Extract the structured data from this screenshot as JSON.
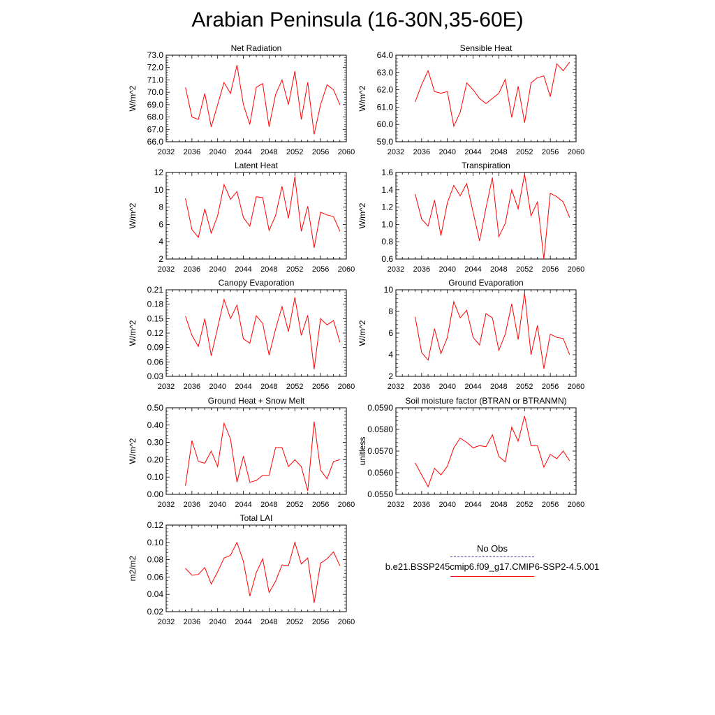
{
  "title": "Arabian Peninsula (16-30N,35-60E)",
  "legend": {
    "obs_label": "No Obs",
    "obs_color": "#4040a0",
    "model_label": "b.e21.BSSP245cmip6.f09_g17.CMIP6-SSP2-4.5.001",
    "model_color": "#ff0000"
  },
  "chart_data": [
    {
      "type": "line",
      "title": "Net Radiation",
      "ylabel": "W/m^2",
      "xlim": [
        2032,
        2060
      ],
      "ylim": [
        66,
        73
      ],
      "xticks": [
        "2032",
        "2036",
        "2040",
        "2044",
        "2048",
        "2052",
        "2056",
        "2060"
      ],
      "yticks": [
        "66.0",
        "67.0",
        "68.0",
        "69.0",
        "70.0",
        "71.0",
        "72.0",
        "73.0"
      ],
      "x": [
        2035,
        2036,
        2037,
        2038,
        2039,
        2040,
        2041,
        2042,
        2043,
        2044,
        2045,
        2046,
        2047,
        2048,
        2049,
        2050,
        2051,
        2052,
        2053,
        2054,
        2055,
        2056,
        2057,
        2058,
        2059
      ],
      "values": [
        70.4,
        68.0,
        67.8,
        69.9,
        67.2,
        69.0,
        70.8,
        69.9,
        72.2,
        69.0,
        67.4,
        70.4,
        70.7,
        67.2,
        69.8,
        71.0,
        69.0,
        71.7,
        67.8,
        70.8,
        66.6,
        69.0,
        70.6,
        70.2,
        69.0
      ]
    },
    {
      "type": "line",
      "title": "Sensible Heat",
      "ylabel": "W/m^2",
      "xlim": [
        2032,
        2060
      ],
      "ylim": [
        59,
        64
      ],
      "xticks": [
        "2032",
        "2036",
        "2040",
        "2044",
        "2048",
        "2052",
        "2056",
        "2060"
      ],
      "yticks": [
        "59.0",
        "60.0",
        "61.0",
        "62.0",
        "63.0",
        "64.0"
      ],
      "x": [
        2035,
        2036,
        2037,
        2038,
        2039,
        2040,
        2041,
        2042,
        2043,
        2044,
        2045,
        2046,
        2047,
        2048,
        2049,
        2050,
        2051,
        2052,
        2053,
        2054,
        2055,
        2056,
        2057,
        2058,
        2059
      ],
      "values": [
        61.3,
        62.3,
        63.1,
        61.9,
        61.8,
        61.9,
        59.9,
        60.7,
        62.4,
        62.0,
        61.5,
        61.2,
        61.5,
        61.8,
        62.6,
        60.4,
        62.2,
        60.1,
        62.4,
        62.7,
        62.8,
        61.6,
        63.5,
        63.1,
        63.6
      ]
    },
    {
      "type": "line",
      "title": "Latent Heat",
      "ylabel": "W/m^2",
      "xlim": [
        2032,
        2060
      ],
      "ylim": [
        2,
        12
      ],
      "xticks": [
        "2032",
        "2036",
        "2040",
        "2044",
        "2048",
        "2052",
        "2056",
        "2060"
      ],
      "yticks": [
        "2",
        "4",
        "6",
        "8",
        "10",
        "12"
      ],
      "x": [
        2035,
        2036,
        2037,
        2038,
        2039,
        2040,
        2041,
        2042,
        2043,
        2044,
        2045,
        2046,
        2047,
        2048,
        2049,
        2050,
        2051,
        2052,
        2053,
        2054,
        2055,
        2056,
        2057,
        2058,
        2059
      ],
      "values": [
        9.0,
        5.4,
        4.5,
        7.8,
        5.0,
        7.0,
        10.6,
        8.9,
        9.8,
        6.8,
        5.8,
        9.2,
        9.1,
        5.3,
        7.0,
        10.4,
        6.7,
        11.5,
        5.2,
        8.1,
        3.3,
        7.4,
        7.1,
        6.9,
        5.2
      ]
    },
    {
      "type": "line",
      "title": "Transpiration",
      "ylabel": "W/m^2",
      "xlim": [
        2032,
        2060
      ],
      "ylim": [
        0.6,
        1.6
      ],
      "xticks": [
        "2032",
        "2036",
        "2040",
        "2044",
        "2048",
        "2052",
        "2056",
        "2060"
      ],
      "yticks": [
        "0.6",
        "0.8",
        "1.0",
        "1.2",
        "1.4",
        "1.6"
      ],
      "x": [
        2035,
        2036,
        2037,
        2038,
        2039,
        2040,
        2041,
        2042,
        2043,
        2044,
        2045,
        2046,
        2047,
        2048,
        2049,
        2050,
        2051,
        2052,
        2053,
        2054,
        2055,
        2056,
        2057,
        2058,
        2059
      ],
      "values": [
        1.35,
        1.06,
        0.98,
        1.28,
        0.87,
        1.25,
        1.45,
        1.33,
        1.47,
        1.14,
        0.81,
        1.19,
        1.54,
        0.86,
        1.01,
        1.4,
        1.18,
        1.58,
        1.1,
        1.26,
        0.6,
        1.36,
        1.32,
        1.26,
        1.08
      ]
    },
    {
      "type": "line",
      "title": "Canopy Evaporation",
      "ylabel": "W/m^2",
      "xlim": [
        2032,
        2060
      ],
      "ylim": [
        0.03,
        0.21
      ],
      "xticks": [
        "2032",
        "2036",
        "2040",
        "2044",
        "2048",
        "2052",
        "2056",
        "2060"
      ],
      "yticks": [
        "0.03",
        "0.06",
        "0.09",
        "0.12",
        "0.15",
        "0.18",
        "0.21"
      ],
      "x": [
        2035,
        2036,
        2037,
        2038,
        2039,
        2040,
        2041,
        2042,
        2043,
        2044,
        2045,
        2046,
        2047,
        2048,
        2049,
        2050,
        2051,
        2052,
        2053,
        2054,
        2055,
        2056,
        2057,
        2058,
        2059
      ],
      "values": [
        0.155,
        0.115,
        0.092,
        0.15,
        0.073,
        0.131,
        0.19,
        0.15,
        0.178,
        0.108,
        0.099,
        0.156,
        0.14,
        0.074,
        0.128,
        0.175,
        0.123,
        0.194,
        0.115,
        0.157,
        0.045,
        0.15,
        0.137,
        0.146,
        0.101
      ]
    },
    {
      "type": "line",
      "title": "Ground Evaporation",
      "ylabel": "W/m^2",
      "xlim": [
        2032,
        2060
      ],
      "ylim": [
        2,
        10
      ],
      "xticks": [
        "2032",
        "2036",
        "2040",
        "2044",
        "2048",
        "2052",
        "2056",
        "2060"
      ],
      "yticks": [
        "2",
        "4",
        "6",
        "8",
        "10"
      ],
      "x": [
        2035,
        2036,
        2037,
        2038,
        2039,
        2040,
        2041,
        2042,
        2043,
        2044,
        2045,
        2046,
        2047,
        2048,
        2049,
        2050,
        2051,
        2052,
        2053,
        2054,
        2055,
        2056,
        2057,
        2058,
        2059
      ],
      "values": [
        7.5,
        4.2,
        3.5,
        6.4,
        4.1,
        5.6,
        8.9,
        7.4,
        8.1,
        5.6,
        4.9,
        7.8,
        7.4,
        4.4,
        5.9,
        8.7,
        5.4,
        9.7,
        4.0,
        6.7,
        2.7,
        5.9,
        5.6,
        5.5,
        4.0
      ]
    },
    {
      "type": "line",
      "title": "Ground Heat + Snow Melt",
      "ylabel": "W/m^2",
      "xlim": [
        2032,
        2060
      ],
      "ylim": [
        0.0,
        0.5
      ],
      "xticks": [
        "2032",
        "2036",
        "2040",
        "2044",
        "2048",
        "2052",
        "2056",
        "2060"
      ],
      "yticks": [
        "0.00",
        "0.10",
        "0.20",
        "0.30",
        "0.40",
        "0.50"
      ],
      "x": [
        2035,
        2036,
        2037,
        2038,
        2039,
        2040,
        2041,
        2042,
        2043,
        2044,
        2045,
        2046,
        2047,
        2048,
        2049,
        2050,
        2051,
        2052,
        2053,
        2054,
        2055,
        2056,
        2057,
        2058,
        2059
      ],
      "values": [
        0.05,
        0.31,
        0.19,
        0.18,
        0.25,
        0.16,
        0.41,
        0.32,
        0.07,
        0.22,
        0.07,
        0.08,
        0.11,
        0.11,
        0.27,
        0.27,
        0.16,
        0.2,
        0.16,
        0.02,
        0.42,
        0.14,
        0.09,
        0.19,
        0.2
      ]
    },
    {
      "type": "line",
      "title": "Soil moisture factor (BTRAN or BTRANMN)",
      "ylabel": "unitless",
      "xlim": [
        2032,
        2060
      ],
      "ylim": [
        0.055,
        0.059
      ],
      "xticks": [
        "2032",
        "2036",
        "2040",
        "2044",
        "2048",
        "2052",
        "2056",
        "2060"
      ],
      "yticks": [
        "0.0550",
        "0.0560",
        "0.0570",
        "0.0580",
        "0.0590"
      ],
      "x": [
        2035,
        2036,
        2037,
        2038,
        2039,
        2040,
        2041,
        2042,
        2043,
        2044,
        2045,
        2046,
        2047,
        2048,
        2049,
        2050,
        2051,
        2052,
        2053,
        2054,
        2055,
        2056,
        2057,
        2058,
        2059
      ],
      "values": [
        0.05645,
        0.0559,
        0.05535,
        0.0562,
        0.0559,
        0.0563,
        0.05715,
        0.0576,
        0.0574,
        0.05715,
        0.05725,
        0.0572,
        0.05775,
        0.05675,
        0.0565,
        0.0581,
        0.05745,
        0.05862,
        0.05725,
        0.05725,
        0.05625,
        0.05685,
        0.05665,
        0.057,
        0.05655
      ]
    },
    {
      "type": "line",
      "title": "Total LAI",
      "ylabel": "m2/m2",
      "xlim": [
        2032,
        2060
      ],
      "ylim": [
        0.02,
        0.12
      ],
      "xticks": [
        "2032",
        "2036",
        "2040",
        "2044",
        "2048",
        "2052",
        "2056",
        "2060"
      ],
      "yticks": [
        "0.02",
        "0.04",
        "0.06",
        "0.08",
        "0.10",
        "0.12"
      ],
      "x": [
        2035,
        2036,
        2037,
        2038,
        2039,
        2040,
        2041,
        2042,
        2043,
        2044,
        2045,
        2046,
        2047,
        2048,
        2049,
        2050,
        2051,
        2052,
        2053,
        2054,
        2055,
        2056,
        2057,
        2058,
        2059
      ],
      "values": [
        0.07,
        0.062,
        0.063,
        0.071,
        0.052,
        0.066,
        0.082,
        0.085,
        0.1,
        0.078,
        0.038,
        0.065,
        0.081,
        0.042,
        0.055,
        0.074,
        0.073,
        0.1,
        0.075,
        0.082,
        0.03,
        0.076,
        0.081,
        0.089,
        0.073
      ]
    }
  ]
}
